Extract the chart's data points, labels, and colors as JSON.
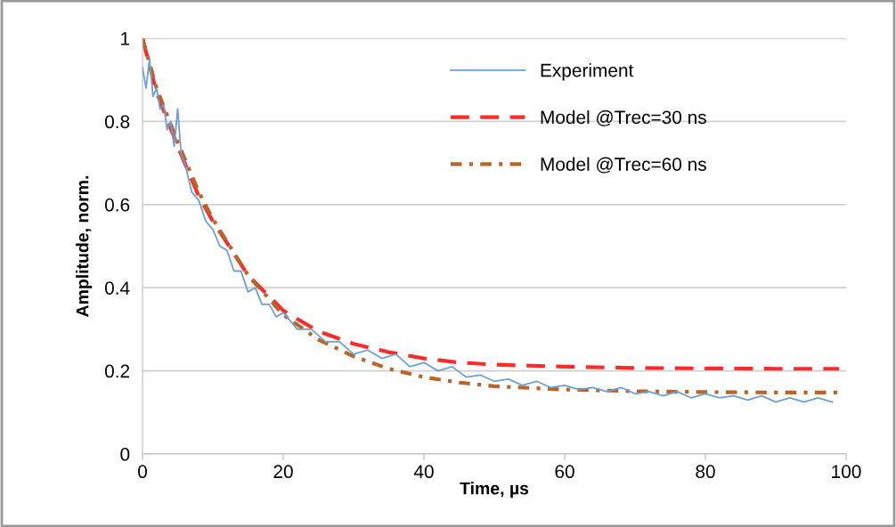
{
  "chart_data": {
    "type": "line",
    "xlabel": "Time, µs",
    "ylabel": "Amplitude, norm.",
    "xlim": [
      0,
      100
    ],
    "xticks": [
      0,
      20,
      40,
      60,
      80,
      100
    ],
    "ylim": [
      0,
      1
    ],
    "yticks": [
      0,
      0.2,
      0.4,
      0.6,
      0.8,
      1
    ],
    "grid": "y",
    "legend": "top",
    "series": [
      {
        "name": "Experiment",
        "color": "#6fa0cf",
        "line_style": "solid",
        "x": [
          0,
          0.5,
          1,
          1.5,
          2,
          2.5,
          3,
          3.5,
          4,
          4.5,
          5,
          5.5,
          6,
          7,
          8,
          9,
          10,
          11,
          12,
          13,
          14,
          15,
          16,
          17,
          18,
          19,
          20,
          22,
          24,
          26,
          28,
          30,
          32,
          34,
          36,
          38,
          40,
          42,
          44,
          46,
          48,
          50,
          52,
          54,
          56,
          58,
          60,
          62,
          64,
          66,
          68,
          70,
          72,
          74,
          76,
          78,
          80,
          82,
          84,
          86,
          88,
          90,
          92,
          94,
          96,
          98
        ],
        "values": [
          0.93,
          0.88,
          0.95,
          0.86,
          0.88,
          0.83,
          0.84,
          0.78,
          0.8,
          0.74,
          0.83,
          0.72,
          0.7,
          0.63,
          0.61,
          0.56,
          0.54,
          0.5,
          0.49,
          0.44,
          0.44,
          0.39,
          0.4,
          0.36,
          0.36,
          0.33,
          0.34,
          0.3,
          0.3,
          0.27,
          0.27,
          0.24,
          0.25,
          0.23,
          0.24,
          0.21,
          0.22,
          0.2,
          0.21,
          0.185,
          0.19,
          0.175,
          0.18,
          0.165,
          0.175,
          0.16,
          0.165,
          0.155,
          0.16,
          0.15,
          0.16,
          0.145,
          0.15,
          0.14,
          0.15,
          0.135,
          0.145,
          0.135,
          0.14,
          0.13,
          0.14,
          0.125,
          0.135,
          0.125,
          0.135,
          0.125
        ]
      },
      {
        "name": "Model @Trec=30 ns",
        "color": "#ff2a2a",
        "line_style": "dashed",
        "x": [
          0,
          2,
          5,
          8,
          10,
          15,
          20,
          25,
          30,
          35,
          40,
          45,
          50,
          60,
          70,
          80,
          90,
          99
        ],
        "values": [
          1.0,
          0.87,
          0.74,
          0.62,
          0.56,
          0.43,
          0.345,
          0.295,
          0.265,
          0.245,
          0.23,
          0.22,
          0.215,
          0.21,
          0.207,
          0.206,
          0.205,
          0.205
        ]
      },
      {
        "name": "Model @Trec=60 ns",
        "color": "#b8652a",
        "line_style": "dashdot",
        "x": [
          0,
          2,
          5,
          8,
          10,
          15,
          20,
          25,
          30,
          35,
          40,
          45,
          50,
          60,
          70,
          80,
          90,
          99
        ],
        "values": [
          1.0,
          0.88,
          0.75,
          0.63,
          0.565,
          0.43,
          0.335,
          0.275,
          0.235,
          0.205,
          0.185,
          0.172,
          0.163,
          0.155,
          0.151,
          0.149,
          0.148,
          0.148
        ]
      }
    ]
  }
}
